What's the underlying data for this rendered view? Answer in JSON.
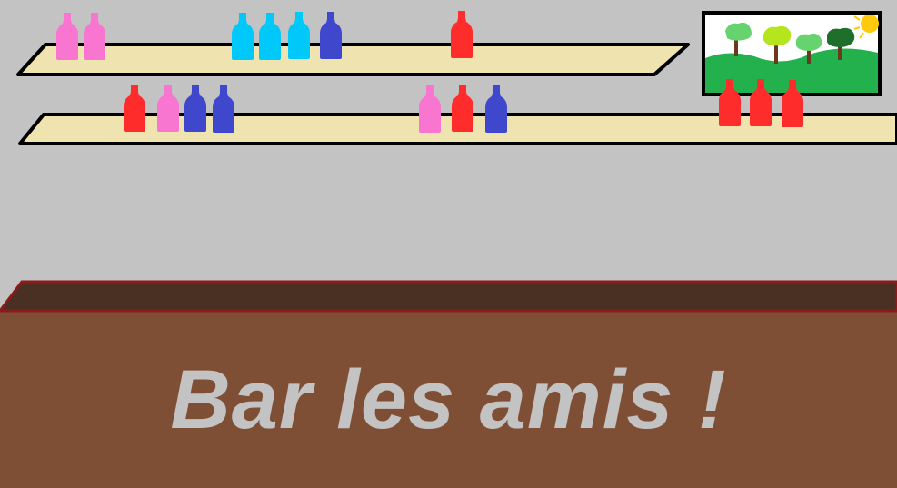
{
  "sign": {
    "text": "Bar les amis !"
  },
  "colors": {
    "wall": "#c3c3c3",
    "shelf": "#efe4b0",
    "counter_front": "#7f4f35",
    "counter_top": "#4a3022",
    "counter_edge": "#8b1a1a",
    "sign_text": "#c3c3c3"
  },
  "shelves": [
    {
      "name": "top-shelf",
      "bottles": [
        "pink",
        "pink",
        "cyan",
        "cyan",
        "cyan",
        "blue",
        "red"
      ]
    },
    {
      "name": "bottom-shelf",
      "bottles": [
        "red",
        "pink",
        "blue",
        "blue",
        "pink",
        "red",
        "blue",
        "red",
        "red",
        "red"
      ]
    }
  ],
  "bottle_colors": {
    "pink": "#f875d0",
    "cyan": "#00c8f8",
    "blue": "#3f48cc",
    "red": "#ff2c2c"
  },
  "painting": {
    "trees": [
      "light-green-tree",
      "yellow-green-tree",
      "light-green-tree",
      "dark-green-tree"
    ],
    "sun": "sun"
  }
}
